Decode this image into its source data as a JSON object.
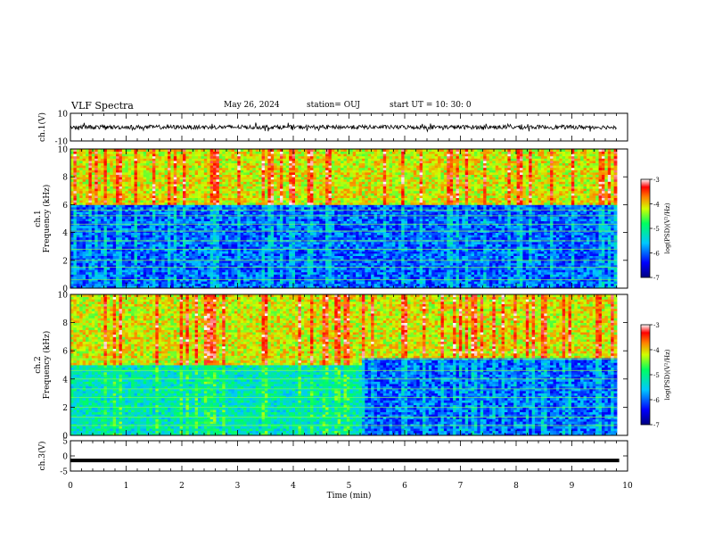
{
  "header": {
    "title": "VLF Spectra",
    "date": "May 26, 2024",
    "station": "station= OUJ",
    "start": "start  UT  =   10: 30: 0"
  },
  "chart_data": [
    {
      "type": "line",
      "ylabel": "ch.1(V)",
      "ylim": [
        -10,
        10
      ],
      "ytick_labels": [
        "-10",
        "10"
      ],
      "xlim": [
        0,
        10
      ],
      "description_level": 0,
      "x": [
        0,
        9.85
      ],
      "y_noise_range": [
        -1.5,
        1.5
      ]
    },
    {
      "type": "heatmap",
      "ylabel": "ch.1",
      "ylabel2": "Frequency  (kHz)",
      "ylim": [
        0,
        10
      ],
      "ytick_labels": [
        "0",
        "2",
        "4",
        "6",
        "8",
        "10"
      ],
      "xlim": [
        0,
        9.85
      ],
      "colorbar": {
        "label": "log(PSD)(V²/Hz)",
        "range": [
          -7,
          -3
        ],
        "tick_labels": [
          "-7",
          "-6",
          "-5",
          "-4",
          "-3"
        ]
      },
      "low_band_below_khz": 6.0
    },
    {
      "type": "heatmap",
      "ylabel": "ch.2",
      "ylabel2": "Frequency  (kHz)",
      "ylim": [
        0,
        10
      ],
      "ytick_labels": [
        "0",
        "2",
        "4",
        "6",
        "8",
        "10"
      ],
      "xlim": [
        0,
        9.85
      ],
      "colorbar": {
        "label": "log(PSD)(V²/Hz)",
        "range": [
          -7,
          -3
        ],
        "tick_labels": [
          "-7",
          "-6",
          "-5",
          "-4",
          "-3"
        ]
      },
      "low_band_below_khz": 5.0
    },
    {
      "type": "line",
      "ylabel": "ch.3(V)",
      "ylim": [
        -5,
        5
      ],
      "ytick_labels": [
        "-5",
        "0",
        "5"
      ],
      "xlim": [
        0,
        10
      ],
      "x": [
        0,
        9.85
      ],
      "y": [
        -1.5,
        -1.5
      ]
    }
  ],
  "x_axis": {
    "label": "Time  (min)",
    "tick_labels": [
      "0",
      "1",
      "2",
      "3",
      "4",
      "5",
      "6",
      "7",
      "8",
      "9",
      "10"
    ]
  }
}
